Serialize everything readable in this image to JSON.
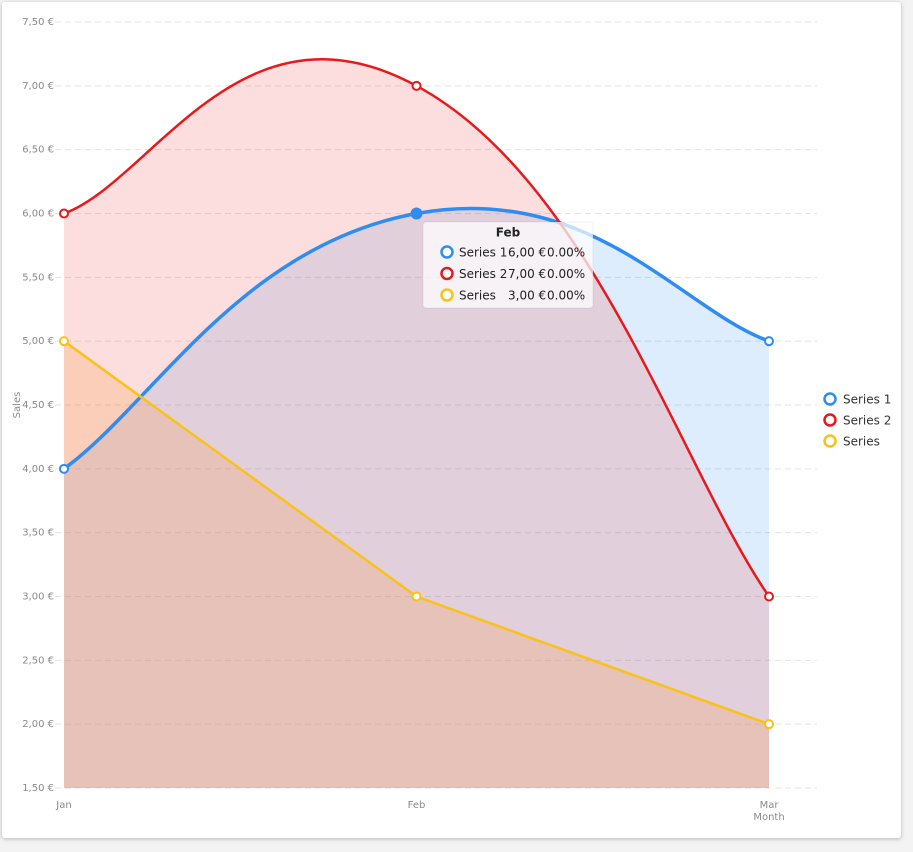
{
  "chart_data": {
    "type": "area",
    "xlabel": "Month",
    "ylabel": "Sales",
    "categories": [
      "Jan",
      "Feb",
      "Mar"
    ],
    "ylim": [
      1.5,
      7.5
    ],
    "yticks": [
      {
        "value": 1.5,
        "label": "1,50 €"
      },
      {
        "value": 2,
        "label": "2,00 €"
      },
      {
        "value": 2.5,
        "label": "2,50 €"
      },
      {
        "value": 3,
        "label": "3,00 €"
      },
      {
        "value": 3.5,
        "label": "3,50 €"
      },
      {
        "value": 4,
        "label": "4,00 €"
      },
      {
        "value": 4.5,
        "label": "4,50 €"
      },
      {
        "value": 5,
        "label": "5,00 €"
      },
      {
        "value": 5.5,
        "label": "5,50 €"
      },
      {
        "value": 6,
        "label": "6,00 €"
      },
      {
        "value": 6.5,
        "label": "6,50 €"
      },
      {
        "value": 7,
        "label": "7,00 €"
      },
      {
        "value": 7.5,
        "label": "7,50 €"
      }
    ],
    "grid": true,
    "legend": "right",
    "series": [
      {
        "name": "Series 1",
        "color": "#2f8cf0",
        "fill": "rgba(47,140,240,0.16)",
        "smooth": true,
        "values": [
          4,
          6,
          5
        ]
      },
      {
        "name": "Series 2",
        "color": "#e8191c",
        "fill": "rgba(240,70,70,0.18)",
        "smooth": true,
        "values": [
          6,
          7,
          3
        ]
      },
      {
        "name": "Series",
        "color": "#f8c21a",
        "fill": "rgba(250,150,60,0.22)",
        "smooth": false,
        "values": [
          5,
          3,
          2
        ]
      }
    ],
    "tooltip": {
      "value_labels": [
        "6,00 €",
        "7,00 €",
        "3,00 €"
      ],
      "percents": [
        "0.00%",
        "0.00%",
        "0.00%"
      ]
    }
  }
}
